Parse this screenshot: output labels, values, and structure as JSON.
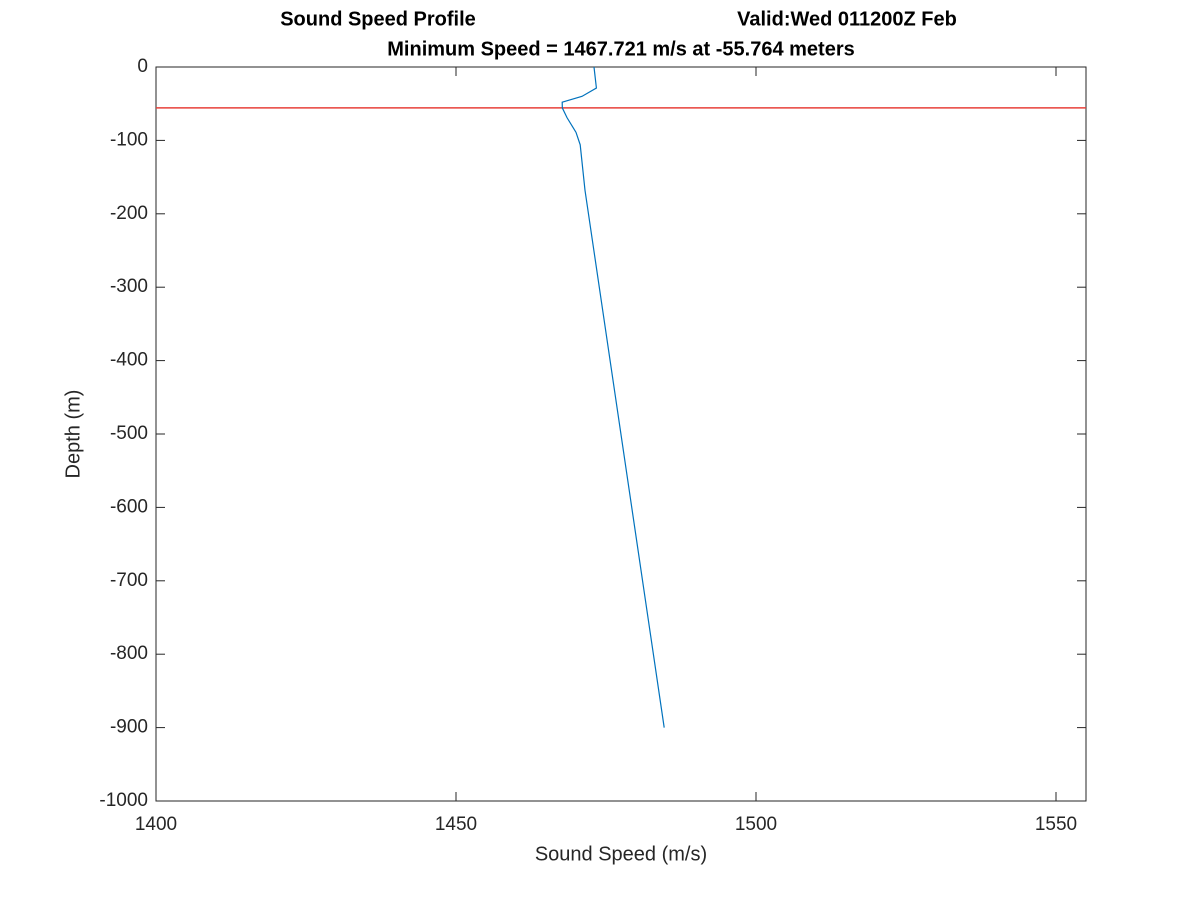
{
  "chart_data": {
    "type": "line",
    "title": "Sound Speed Profile",
    "valid": "Valid:Wed 011200Z Feb",
    "subtitle": "Minimum Speed = 1467.721 m/s at -55.764 meters",
    "xlabel": "Sound Speed (m/s)",
    "ylabel": "Depth (m)",
    "series": [
      {
        "color": "#0072bd",
        "x": [
          1473.0,
          1473.4,
          1471.0,
          1467.7,
          1467.721,
          1468.5,
          1470.0,
          1470.7,
          1471.5,
          1484.7
        ],
        "values": [
          0,
          -28.6,
          -40,
          -48,
          -55.764,
          -69,
          -89,
          -106,
          -168,
          -900
        ]
      }
    ],
    "hline": {
      "value": -55.764,
      "color": "#e8403a"
    },
    "xlim": [
      1400,
      1555
    ],
    "xticks": [
      1400,
      1450,
      1500,
      1550
    ],
    "ylim": [
      -1000,
      0
    ],
    "yticks": [
      0,
      -100,
      -200,
      -300,
      -400,
      -500,
      -600,
      -700,
      -800,
      -900,
      -1000
    ],
    "grid": false
  }
}
